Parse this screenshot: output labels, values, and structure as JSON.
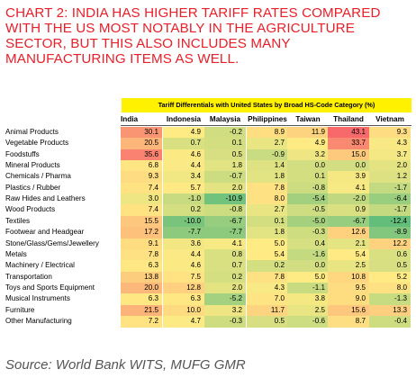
{
  "chart_title_lines": [
    "CHART 2: INDIA HAS HIGHER TARIFF RATES COMPARED",
    "WITH THE US MOST NOTABLY IN THE AGRICULTURE",
    "SECTOR, BUT THIS ALSO INCLUDES MANY",
    "MANUFACTURING ITEMS AS WELL."
  ],
  "source": "Source: World Bank WITS, MUFG GMR",
  "colors": {
    "title": "#e8202a",
    "header_band": "#fff100",
    "high": "#f8696b",
    "mid": "#ffeb84",
    "low": "#63be7b"
  },
  "chart_data": {
    "type": "heatmap",
    "title": "Tariff Differentials with United States by Broad HS-Code Category (%)",
    "columns": [
      "India",
      "Indonesia",
      "Malaysia",
      "Philippines",
      "Taiwan",
      "Thailand",
      "Vietnam"
    ],
    "rows": [
      "Animal Products",
      "Vegetable Products",
      "Foodstuffs",
      "Mineral Products",
      "Chemicals / Pharma",
      "Plastics / Rubber",
      "Raw Hides and Leathers",
      "Wood Products",
      "Textiles",
      "Footwear and Headgear",
      "Stone/Glass/Gems/Jewellery",
      "Metals",
      "Machinery / Electrical",
      "Transportation",
      "Toys and Sports Equipment",
      "Musical Instruments",
      "Furniture",
      "Other Manufacturing"
    ],
    "values": [
      [
        30.1,
        4.9,
        -0.2,
        8.9,
        11.9,
        43.1,
        9.3
      ],
      [
        20.5,
        0.7,
        0.1,
        2.7,
        4.9,
        33.7,
        4.3
      ],
      [
        35.6,
        4.6,
        0.5,
        -0.9,
        3.2,
        15.0,
        3.7
      ],
      [
        6.8,
        4.4,
        1.8,
        1.4,
        0.0,
        0.0,
        2.0
      ],
      [
        9.3,
        3.4,
        -0.7,
        1.8,
        0.1,
        3.9,
        1.2
      ],
      [
        7.4,
        5.7,
        2.0,
        7.8,
        -0.8,
        4.1,
        -1.7
      ],
      [
        3.0,
        -1.0,
        -10.9,
        8.0,
        -5.4,
        -2.0,
        -6.4
      ],
      [
        7.4,
        0.2,
        -0.8,
        2.7,
        -0.5,
        0.9,
        -1.7
      ],
      [
        15.5,
        -10.0,
        -6.7,
        0.1,
        -5.0,
        -6.7,
        -12.4
      ],
      [
        17.2,
        -7.7,
        -7.7,
        1.8,
        -0.3,
        12.6,
        -8.9
      ],
      [
        9.1,
        3.6,
        4.1,
        5.0,
        0.4,
        2.1,
        12.2
      ],
      [
        7.8,
        4.4,
        0.8,
        5.4,
        -1.6,
        5.4,
        0.6
      ],
      [
        6.3,
        4.6,
        0.7,
        0.2,
        0.0,
        2.5,
        0.5
      ],
      [
        13.8,
        7.5,
        0.2,
        7.8,
        5.0,
        10.8,
        5.2
      ],
      [
        20.0,
        12.8,
        2.0,
        4.3,
        -1.1,
        9.5,
        8.0
      ],
      [
        6.3,
        6.3,
        -5.2,
        7.0,
        3.8,
        9.0,
        -1.3
      ],
      [
        21.5,
        10.0,
        3.2,
        11.7,
        2.5,
        15.6,
        13.3
      ],
      [
        7.2,
        4.7,
        -0.3,
        0.5,
        -0.6,
        8.7,
        -0.4
      ]
    ],
    "color_scale": {
      "min": -12.4,
      "mid": 5,
      "max": 43.1
    }
  }
}
